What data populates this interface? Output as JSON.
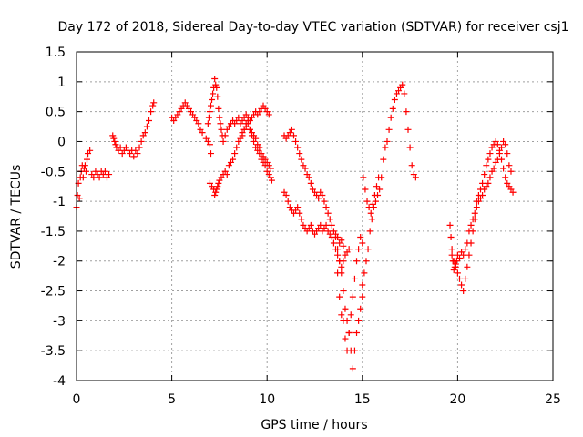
{
  "chart_data": {
    "type": "scatter",
    "title": "Day 172 of 2018, Sidereal Day-to-day VTEC variation (SDTVAR) for receiver csj1",
    "xlabel": "GPS time / hours",
    "ylabel": "SDTVAR / TECUs",
    "xlim": [
      0,
      25
    ],
    "ylim": [
      -4,
      1.5
    ],
    "xticks": [
      "0",
      "5",
      "10",
      "15",
      "20",
      "25"
    ],
    "yticks": [
      "1.5",
      "1",
      "0.5",
      "0",
      "-0.5",
      "-1",
      "-1.5",
      "-2",
      "-2.5",
      "-3",
      "-3.5",
      "-4"
    ],
    "grid": true,
    "marker": "+",
    "color": "#ff0000",
    "series": [
      {
        "name": "SDTVAR",
        "x": [
          0.0,
          0.05,
          0.1,
          0.15,
          0.2,
          0.25,
          0.3,
          0.35,
          0.4,
          0.45,
          0.5,
          0.55,
          0.6,
          0.7,
          0.8,
          0.9,
          1.0,
          1.1,
          1.2,
          1.3,
          1.4,
          1.5,
          1.6,
          1.7,
          1.9,
          1.95,
          2.0,
          2.05,
          2.1,
          2.2,
          2.3,
          2.4,
          2.5,
          2.6,
          2.7,
          2.8,
          2.9,
          3.0,
          3.1,
          3.2,
          3.3,
          3.4,
          3.5,
          3.6,
          3.7,
          3.8,
          3.9,
          4.0,
          4.05,
          5.0,
          5.1,
          5.2,
          5.3,
          5.4,
          5.5,
          5.6,
          5.7,
          5.8,
          5.9,
          6.0,
          6.1,
          6.2,
          6.3,
          6.4,
          6.5,
          6.6,
          6.8,
          6.9,
          7.0,
          7.05,
          6.9,
          6.95,
          7.0,
          7.05,
          7.1,
          7.15,
          7.2,
          7.25,
          7.3,
          7.35,
          7.4,
          7.45,
          7.5,
          7.55,
          7.6,
          7.65,
          7.7,
          7.8,
          7.9,
          8.0,
          8.1,
          8.2,
          8.3,
          8.4,
          8.5,
          8.6,
          8.7,
          8.8,
          8.9,
          9.0,
          9.1,
          9.2,
          9.3,
          9.4,
          9.5,
          9.6,
          9.7,
          9.8,
          9.9,
          10.0,
          10.1,
          7.0,
          7.1,
          7.2,
          7.25,
          7.3,
          7.35,
          7.4,
          7.45,
          7.5,
          7.6,
          7.7,
          7.8,
          7.9,
          8.0,
          8.1,
          8.2,
          8.3,
          8.4,
          8.5,
          8.6,
          8.7,
          8.8,
          8.9,
          9.0,
          9.1,
          9.2,
          9.3,
          9.4,
          9.5,
          9.6,
          9.7,
          9.8,
          9.9,
          10.0,
          10.1,
          10.2,
          10.25,
          8.7,
          8.8,
          8.9,
          9.0,
          9.1,
          9.2,
          9.3,
          9.4,
          9.5,
          9.6,
          9.7,
          9.8,
          9.9,
          10.0,
          10.1,
          10.2,
          10.9,
          11.0,
          11.1,
          11.2,
          11.3,
          11.4,
          11.5,
          11.6,
          11.7,
          11.8,
          11.9,
          12.0,
          12.1,
          12.2,
          12.3,
          12.4,
          12.5,
          12.6,
          12.7,
          12.8,
          12.9,
          13.0,
          13.1,
          13.2,
          13.3,
          13.4,
          13.5,
          13.6,
          13.7,
          13.8,
          13.9,
          14.0,
          10.9,
          11.0,
          11.1,
          11.2,
          11.3,
          11.4,
          11.5,
          11.6,
          11.7,
          11.8,
          11.9,
          12.0,
          12.1,
          12.2,
          12.3,
          12.4,
          12.5,
          12.6,
          12.7,
          12.8,
          12.9,
          13.0,
          13.1,
          13.2,
          13.3,
          13.4,
          13.5,
          13.6,
          13.7,
          13.8,
          13.9,
          14.0,
          14.1,
          14.2,
          14.3,
          13.6,
          13.7,
          13.8,
          13.9,
          14.0,
          14.1,
          14.2,
          14.3,
          14.4,
          14.5,
          14.6,
          14.7,
          14.8,
          14.9,
          15.0,
          13.7,
          13.8,
          13.9,
          14.0,
          14.1,
          14.2,
          14.3,
          14.4,
          14.5,
          14.6,
          14.7,
          14.8,
          14.9,
          15.0,
          15.0,
          15.1,
          15.2,
          15.3,
          15.4,
          15.5,
          15.6,
          15.7,
          15.8,
          15.9,
          16.0,
          16.1,
          16.2,
          16.3,
          16.4,
          16.5,
          16.6,
          16.7,
          16.8,
          16.9,
          17.0,
          17.1,
          17.2,
          17.3,
          17.4,
          17.5,
          17.6,
          17.7,
          17.8,
          15.05,
          15.15,
          15.25,
          15.35,
          15.45,
          15.55,
          15.65,
          15.75,
          15.85,
          19.6,
          19.65,
          19.7,
          19.75,
          19.8,
          19.85,
          19.9,
          19.95,
          20.0,
          20.1,
          20.2,
          20.3,
          20.4,
          20.5,
          20.6,
          20.7,
          20.8,
          20.9,
          21.0,
          21.1,
          21.2,
          21.3,
          21.4,
          21.5,
          21.6,
          21.7,
          21.8,
          21.9,
          22.0,
          22.1,
          22.2,
          22.3,
          22.4,
          22.5,
          22.6,
          22.7,
          22.8,
          22.9,
          19.7,
          19.8,
          19.9,
          20.0,
          20.1,
          20.2,
          20.3,
          20.4,
          20.5,
          20.6,
          20.7,
          20.8,
          20.9,
          21.0,
          21.1,
          21.2,
          21.3,
          21.4,
          21.5,
          21.6,
          21.7,
          21.8,
          21.9,
          22.0,
          22.1,
          22.2,
          22.3,
          22.4,
          22.5,
          22.6,
          22.7,
          22.8
        ],
        "y": [
          -1.1,
          -0.9,
          -0.7,
          -0.95,
          -0.6,
          -0.5,
          -0.4,
          -0.6,
          -0.45,
          -0.4,
          -0.5,
          -0.3,
          -0.2,
          -0.15,
          -0.55,
          -0.6,
          -0.5,
          -0.55,
          -0.6,
          -0.5,
          -0.55,
          -0.5,
          -0.6,
          -0.55,
          0.1,
          0.05,
          0.0,
          -0.05,
          -0.1,
          -0.15,
          -0.1,
          -0.2,
          -0.15,
          -0.1,
          -0.15,
          -0.2,
          -0.15,
          -0.25,
          -0.15,
          -0.2,
          -0.1,
          0.0,
          0.1,
          0.15,
          0.25,
          0.35,
          0.5,
          0.6,
          0.65,
          0.4,
          0.35,
          0.4,
          0.45,
          0.5,
          0.55,
          0.6,
          0.65,
          0.6,
          0.55,
          0.5,
          0.45,
          0.4,
          0.35,
          0.3,
          0.2,
          0.15,
          0.05,
          0.0,
          -0.05,
          -0.2,
          0.3,
          0.4,
          0.5,
          0.6,
          0.7,
          0.8,
          0.9,
          1.05,
          0.95,
          0.9,
          0.75,
          0.55,
          0.4,
          0.3,
          0.2,
          0.1,
          0.0,
          0.1,
          0.2,
          0.25,
          0.3,
          0.35,
          0.3,
          0.35,
          0.4,
          0.3,
          0.35,
          0.4,
          0.45,
          0.4,
          0.35,
          0.4,
          0.45,
          0.5,
          0.45,
          0.5,
          0.55,
          0.6,
          0.55,
          0.5,
          0.45,
          -0.7,
          -0.75,
          -0.8,
          -0.9,
          -0.85,
          -0.8,
          -0.75,
          -0.7,
          -0.65,
          -0.6,
          -0.55,
          -0.5,
          -0.55,
          -0.4,
          -0.35,
          -0.3,
          -0.2,
          -0.1,
          0.0,
          0.05,
          0.15,
          0.2,
          0.25,
          0.3,
          0.2,
          0.1,
          0.0,
          -0.1,
          -0.15,
          -0.2,
          -0.3,
          -0.35,
          -0.4,
          -0.5,
          -0.55,
          -0.6,
          -0.65,
          0.1,
          0.2,
          0.3,
          0.35,
          0.2,
          0.15,
          0.1,
          0.05,
          -0.05,
          -0.1,
          -0.2,
          -0.25,
          -0.3,
          -0.35,
          -0.4,
          -0.45,
          0.1,
          0.05,
          0.1,
          0.15,
          0.2,
          0.1,
          0.0,
          -0.1,
          -0.2,
          -0.3,
          -0.4,
          -0.45,
          -0.55,
          -0.6,
          -0.7,
          -0.8,
          -0.85,
          -0.9,
          -0.95,
          -0.85,
          -0.9,
          -1.0,
          -1.1,
          -1.2,
          -1.3,
          -1.4,
          -1.5,
          -1.55,
          -1.6,
          -1.7,
          -1.65,
          -1.75,
          -0.85,
          -0.9,
          -1.0,
          -1.1,
          -1.15,
          -1.2,
          -1.15,
          -1.1,
          -1.2,
          -1.3,
          -1.4,
          -1.45,
          -1.5,
          -1.45,
          -1.4,
          -1.5,
          -1.55,
          -1.5,
          -1.45,
          -1.4,
          -1.5,
          -1.45,
          -1.4,
          -1.5,
          -1.55,
          -1.6,
          -1.7,
          -1.8,
          -1.9,
          -2.0,
          -2.1,
          -2.0,
          -1.9,
          -1.85,
          -1.8,
          -1.6,
          -1.8,
          -2.0,
          -2.2,
          -2.5,
          -2.8,
          -3.0,
          -3.2,
          -3.5,
          -3.8,
          -3.5,
          -3.2,
          -3.0,
          -2.8,
          -2.6,
          -2.2,
          -2.6,
          -2.9,
          -3.0,
          -3.3,
          -3.5,
          -3.2,
          -2.9,
          -2.6,
          -2.3,
          -2.0,
          -1.8,
          -1.6,
          -1.7,
          -2.4,
          -2.2,
          -2.0,
          -1.8,
          -1.5,
          -1.3,
          -1.1,
          -1.0,
          -0.9,
          -0.8,
          -0.6,
          -0.3,
          -0.1,
          0.0,
          0.2,
          0.4,
          0.55,
          0.7,
          0.8,
          0.85,
          0.9,
          0.95,
          0.8,
          0.5,
          0.2,
          -0.1,
          -0.4,
          -0.55,
          -0.6,
          -0.6,
          -0.8,
          -1.0,
          -1.1,
          -1.2,
          -1.05,
          -0.9,
          -0.75,
          -0.6,
          -1.4,
          -1.6,
          -1.8,
          -2.0,
          -2.15,
          -2.1,
          -2.05,
          -2.0,
          -1.9,
          -1.95,
          -1.85,
          -1.9,
          -1.8,
          -1.7,
          -1.5,
          -1.4,
          -1.3,
          -1.2,
          -1.0,
          -0.9,
          -0.8,
          -0.7,
          -0.55,
          -0.4,
          -0.3,
          -0.2,
          -0.1,
          -0.05,
          0.0,
          -0.05,
          -0.15,
          -0.3,
          -0.45,
          -0.6,
          -0.7,
          -0.75,
          -0.8,
          -0.85,
          -1.9,
          -2.0,
          -2.1,
          -2.2,
          -2.3,
          -2.4,
          -2.5,
          -2.3,
          -2.1,
          -1.9,
          -1.7,
          -1.5,
          -1.3,
          -1.1,
          -1.0,
          -0.95,
          -0.9,
          -0.8,
          -0.75,
          -0.7,
          -0.6,
          -0.5,
          -0.45,
          -0.35,
          -0.3,
          -0.2,
          -0.1,
          0.0,
          -0.05,
          -0.2,
          -0.4,
          -0.5
        ]
      }
    ]
  }
}
